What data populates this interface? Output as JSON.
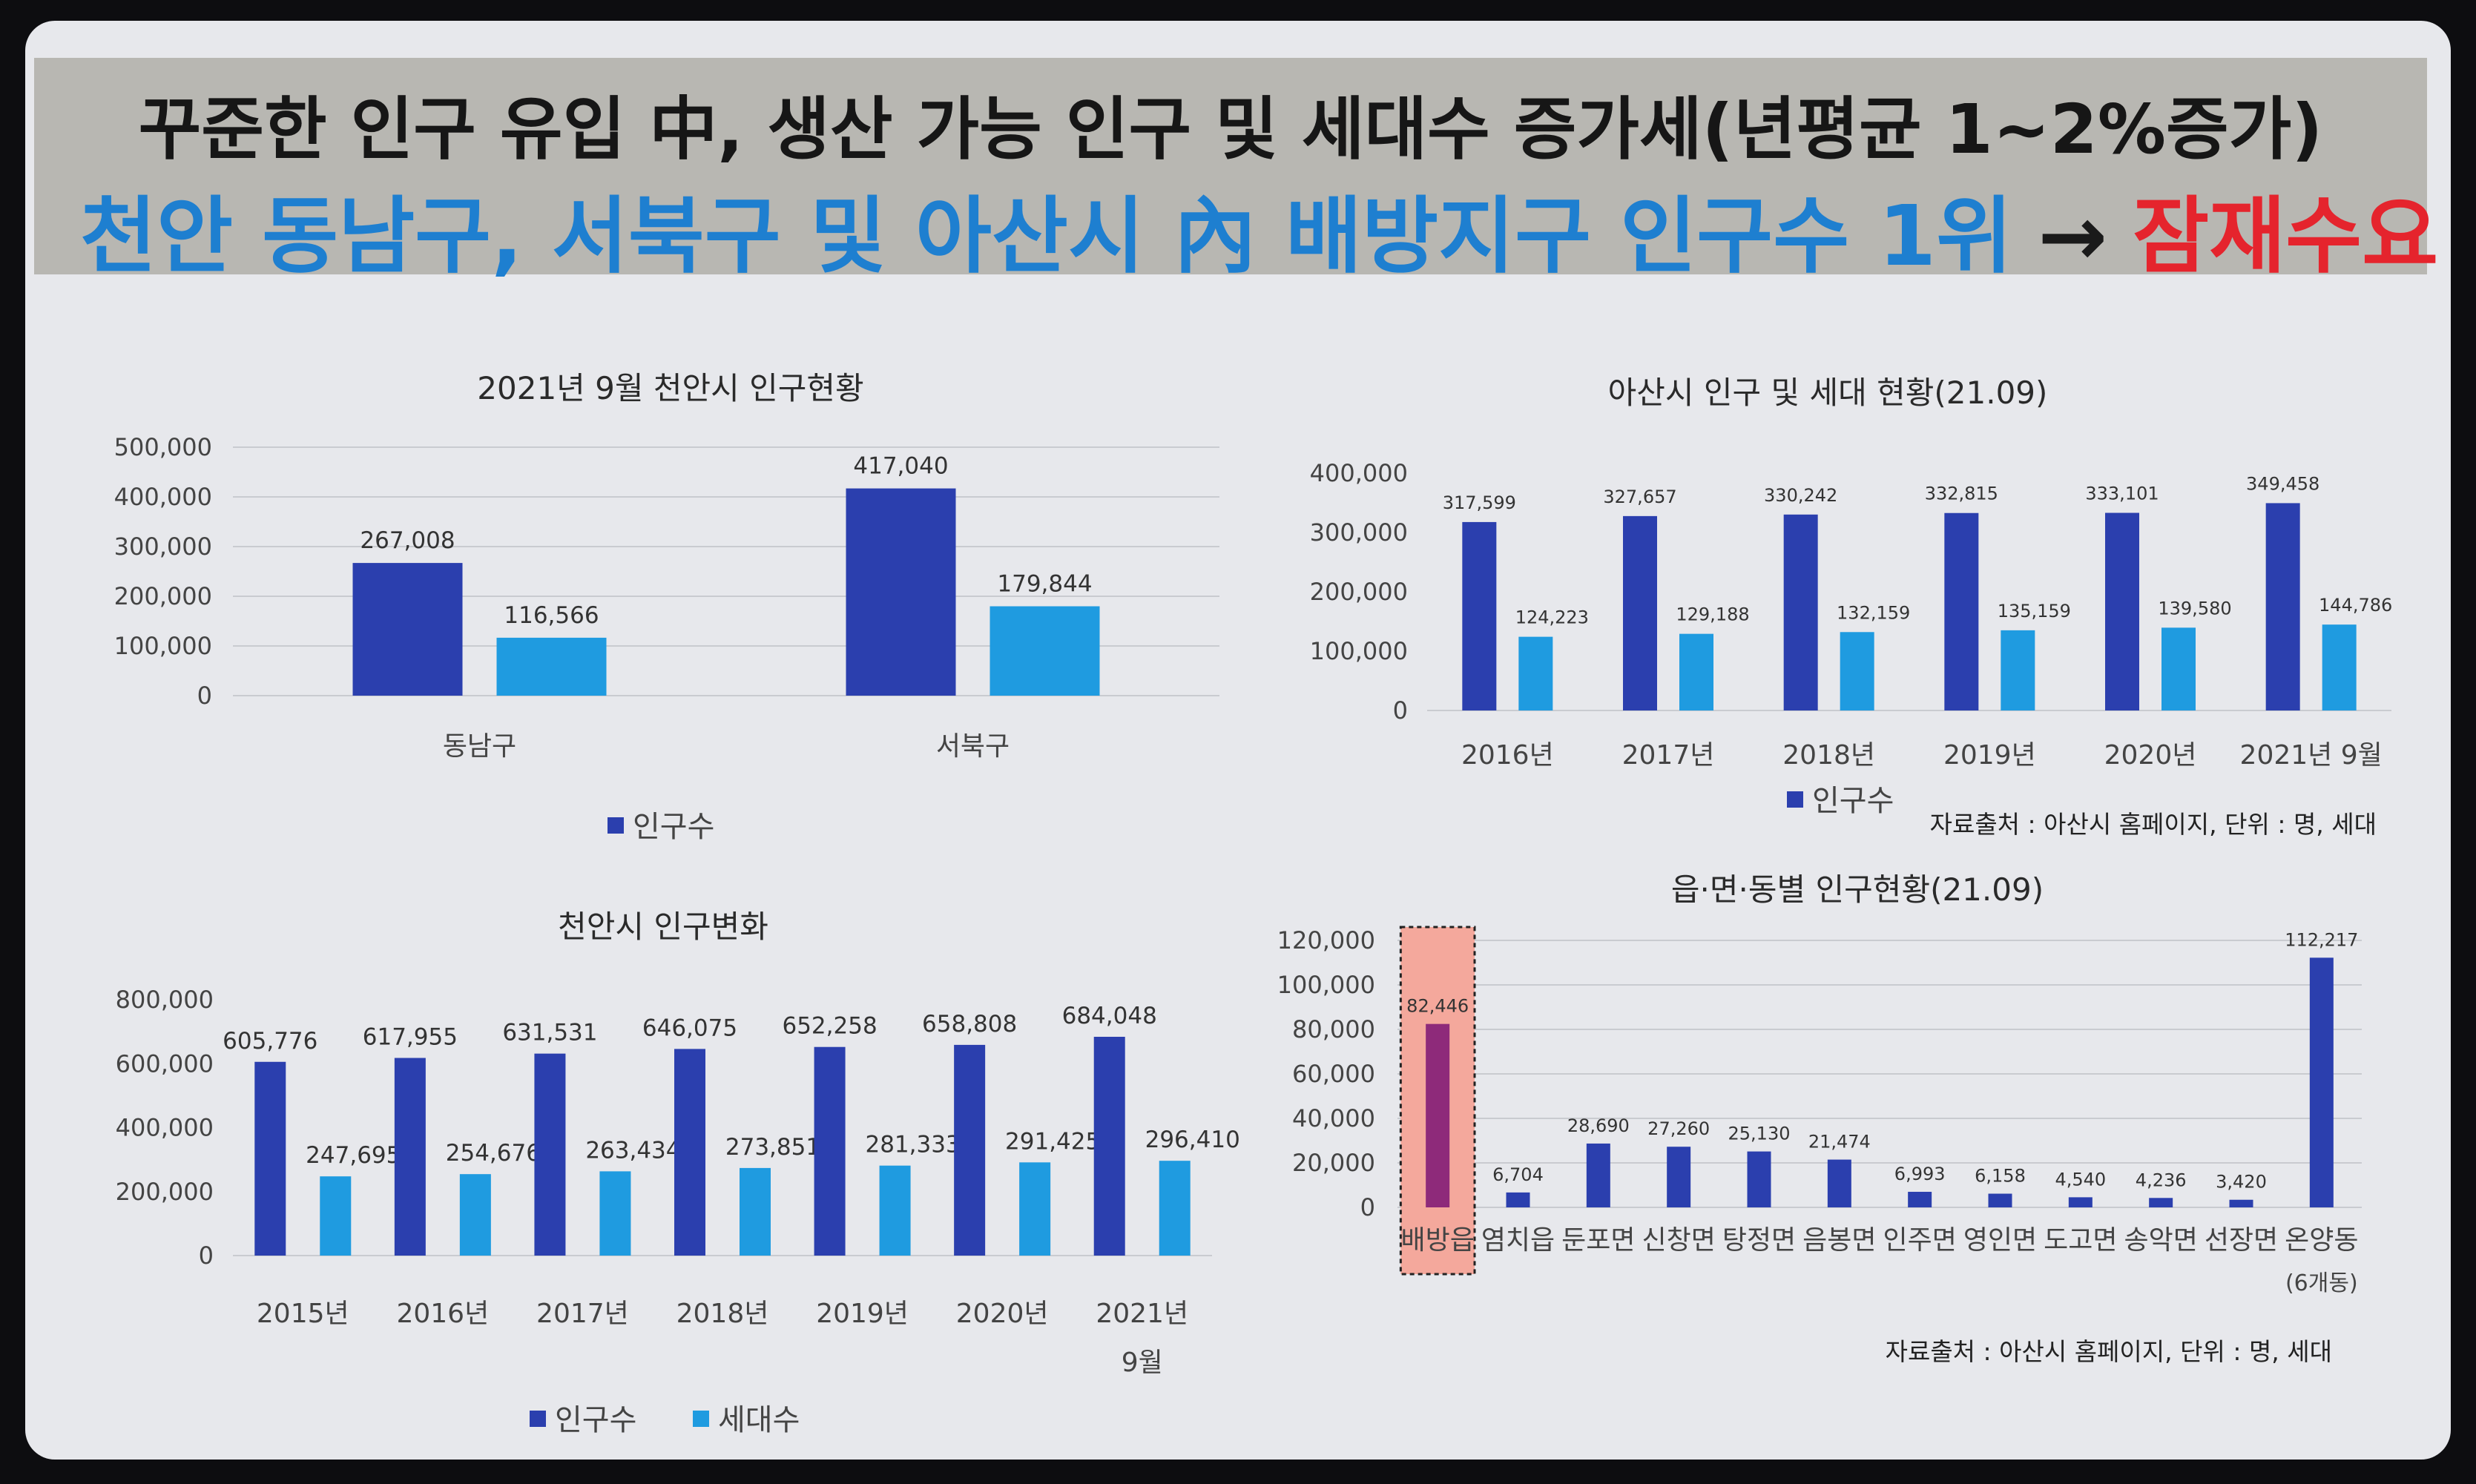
{
  "banner": {
    "line1": "꾸준한 인구 유입 中, 생산 가능 인구 및 세대수 증가세(년평균 1~2%증가)",
    "line2_main": "천안 동남구, 서북구 및 아산시 內 배방지구 인구수 1위",
    "line2_arrow": "→",
    "line2_highlight": "잠재수요 풍부"
  },
  "colors": {
    "population": "#2b3fae",
    "households": "#1f9be0",
    "highlight_box": "#f4a89c",
    "highlight_bar": "#8e2a7a"
  },
  "chart_data": [
    {
      "id": "cheonan-district",
      "type": "bar",
      "title": "2021년 9월 천안시 인구현황",
      "categories": [
        "동남구",
        "서북구"
      ],
      "series": [
        {
          "name": "인구수",
          "values": [
            267008,
            417040
          ],
          "labels": [
            "267,008",
            "417,040"
          ]
        },
        {
          "values": [
            116566,
            179844
          ],
          "labels": [
            "116,566",
            "179,844"
          ]
        }
      ],
      "ylim": [
        0,
        500000
      ],
      "yticks": [
        "0",
        "100,000",
        "200,000",
        "300,000",
        "400,000",
        "500,000"
      ],
      "grid": true,
      "legend": "bottom"
    },
    {
      "id": "asan-yearly",
      "type": "bar",
      "title": "아산시 인구 및 세대 현황(21.09)",
      "categories": [
        "2016년",
        "2017년",
        "2018년",
        "2019년",
        "2020년",
        "2021년 9월"
      ],
      "series": [
        {
          "name": "인구수",
          "values": [
            317599,
            327657,
            330242,
            332815,
            333101,
            349458
          ],
          "labels": [
            "317,599",
            "327,657",
            "330,242",
            "332,815",
            "333,101",
            "349,458"
          ]
        },
        {
          "values": [
            124223,
            129188,
            132159,
            135159,
            139580,
            144786
          ],
          "labels": [
            "124,223",
            "129,188",
            "132,159",
            "135,159",
            "139,580",
            "144,786"
          ]
        }
      ],
      "ylim": [
        0,
        400000
      ],
      "yticks": [
        "0",
        "100,000",
        "200,000",
        "300,000",
        "400,000"
      ],
      "grid": false,
      "legend": "bottom",
      "source": "자료출처 : 아산시 홈페이지, 단위 : 명, 세대"
    },
    {
      "id": "cheonan-yearly",
      "type": "bar",
      "title": "천안시 인구변화",
      "categories": [
        "2015년",
        "2016년",
        "2017년",
        "2018년",
        "2019년",
        "2020년",
        "2021년 9월"
      ],
      "series": [
        {
          "name": "인구수",
          "values": [
            605776,
            617955,
            631531,
            646075,
            652258,
            658808,
            684048
          ],
          "labels": [
            "605,776",
            "617,955",
            "631,531",
            "646,075",
            "652,258",
            "658,808",
            "684,048"
          ]
        },
        {
          "name": "세대수",
          "values": [
            247695,
            254676,
            263434,
            273851,
            281333,
            291425,
            296410
          ],
          "labels": [
            "247,695",
            "254,676",
            "263,434",
            "273,851",
            "281,333",
            "291,425",
            "296,410"
          ]
        }
      ],
      "ylim": [
        0,
        800000
      ],
      "yticks": [
        "0",
        "200,000",
        "400,000",
        "600,000",
        "800,000"
      ],
      "grid": false,
      "legend": "bottom"
    },
    {
      "id": "asan-town",
      "type": "bar",
      "title": "읍·면·동별 인구현황(21.09)",
      "categories": [
        "배방읍",
        "염치읍",
        "둔포면",
        "신창면",
        "탕정면",
        "음봉면",
        "인주면",
        "영인면",
        "도고면",
        "송악면",
        "선장면",
        "온양동"
      ],
      "category_sublabels": {
        "온양동": "(6개동)"
      },
      "highlighted": "배방읍",
      "series": [
        {
          "values": [
            82446,
            6704,
            28690,
            27260,
            25130,
            21474,
            6993,
            6158,
            4540,
            4236,
            3420,
            112217
          ],
          "labels": [
            "82,446",
            "6,704",
            "28,690",
            "27,260",
            "25,130",
            "21,474",
            "6,993",
            "6,158",
            "4,540",
            "4,236",
            "3,420",
            "112,217"
          ]
        }
      ],
      "ylim": [
        0,
        120000
      ],
      "yticks": [
        "0",
        "20,000",
        "40,000",
        "60,000",
        "80,000",
        "100,000",
        "120,000"
      ],
      "grid": true,
      "legend": "none",
      "source": "자료출처 : 아산시 홈페이지, 단위 : 명, 세대"
    }
  ]
}
